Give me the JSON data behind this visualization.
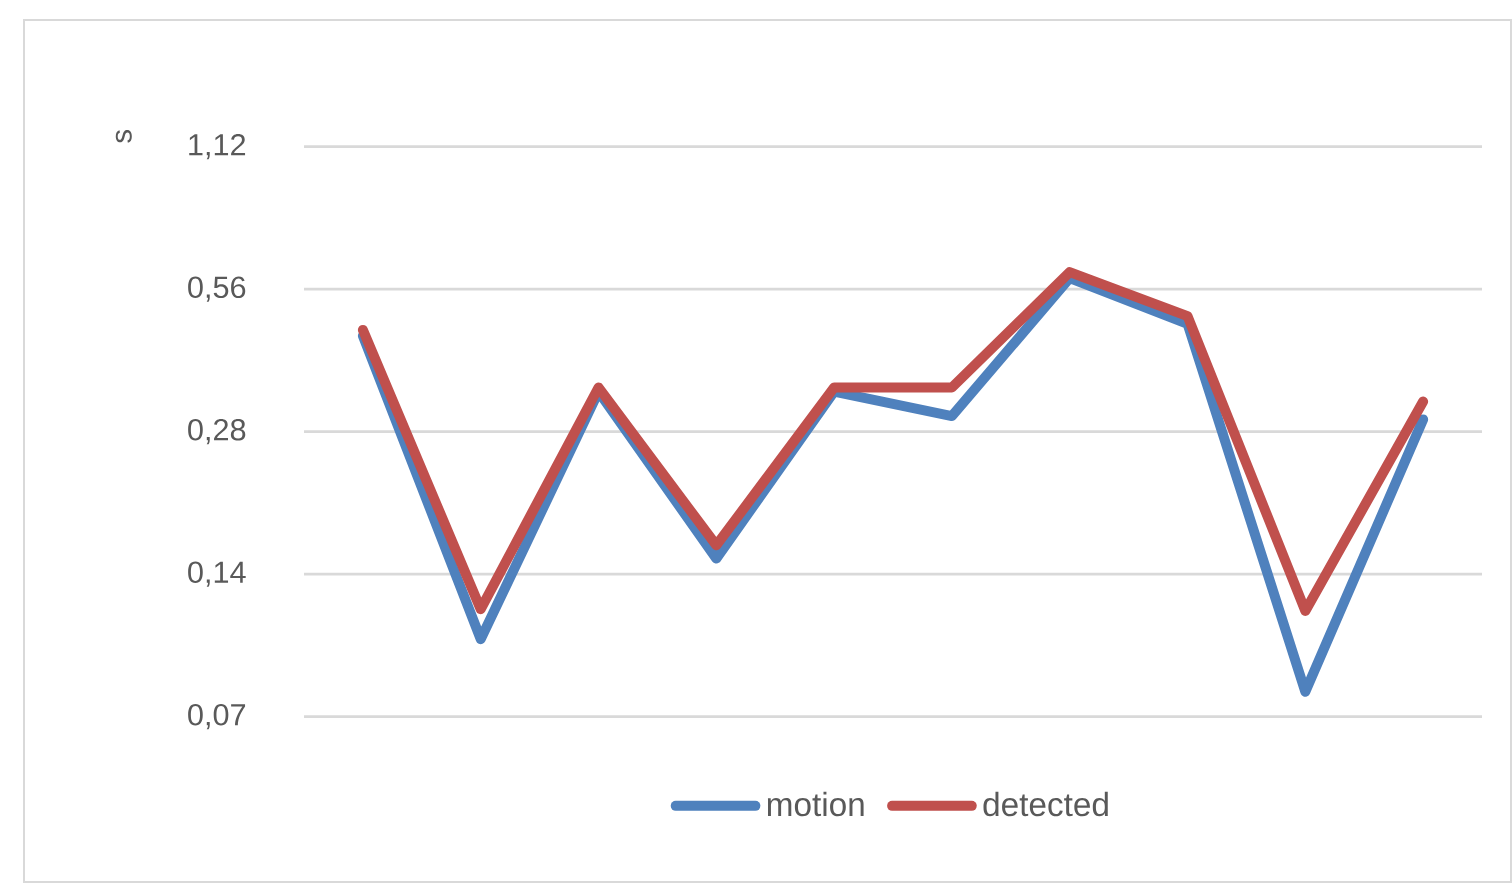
{
  "chart_data": {
    "type": "line",
    "ylabel": "s",
    "categories": [
      null,
      null,
      null,
      null,
      null,
      null,
      null,
      null,
      null,
      null
    ],
    "series": [
      {
        "name": "motion",
        "color": "#4f81bd",
        "values": [
          0.446,
          0.102,
          0.34,
          0.151,
          0.34,
          0.302,
          0.591,
          0.473,
          0.079,
          0.297
        ]
      },
      {
        "name": "detected",
        "color": "#c0504d",
        "values": [
          0.459,
          0.118,
          0.347,
          0.161,
          0.347,
          0.347,
          0.608,
          0.491,
          0.117,
          0.324
        ]
      }
    ],
    "ylim": [
      0.07,
      1.12
    ],
    "yticks": [
      {
        "value": 0.07,
        "label": "0,07"
      },
      {
        "value": 0.14,
        "label": "0,14"
      },
      {
        "value": 0.28,
        "label": "0,28"
      },
      {
        "value": 0.56,
        "label": "0,56"
      },
      {
        "value": 1.12,
        "label": "1,12"
      }
    ],
    "log": "y",
    "grid": "y",
    "legend": "bottom"
  }
}
